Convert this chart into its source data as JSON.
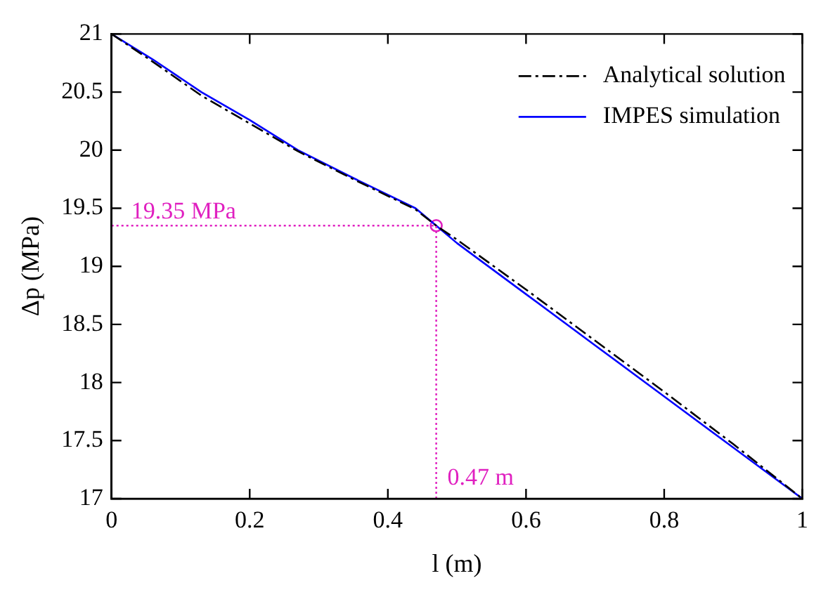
{
  "chart_data": {
    "type": "line",
    "xlabel": "l (m)",
    "ylabel": "Δp (MPa)",
    "xlim": [
      0,
      1
    ],
    "ylim": [
      17,
      21
    ],
    "xticks": [
      0,
      0.2,
      0.4,
      0.6,
      0.8,
      1
    ],
    "yticks": [
      17,
      17.5,
      18,
      18.5,
      19,
      19.5,
      20,
      20.5,
      21
    ],
    "grid": false,
    "legend": "top right",
    "series": [
      {
        "name": "Analytical solution",
        "color": "#000000",
        "line_style": "dashed",
        "marker": "none",
        "x": [
          0,
          0.06,
          0.13,
          0.2,
          0.27,
          0.35,
          0.44,
          0.47,
          0.5,
          0.6,
          0.7,
          0.8,
          0.9,
          1
        ],
        "values": [
          21,
          20.76,
          20.47,
          20.23,
          19.99,
          19.75,
          19.49,
          19.35,
          19.23,
          18.8,
          18.36,
          17.92,
          17.47,
          17
        ]
      },
      {
        "name": "IMPES simulation",
        "color": "#0000ff",
        "line_style": "solid",
        "marker": "none",
        "x": [
          0,
          0.06,
          0.13,
          0.2,
          0.27,
          0.35,
          0.44,
          0.47,
          0.5,
          0.6,
          0.7,
          0.8,
          0.9,
          1
        ],
        "values": [
          21,
          20.78,
          20.5,
          20.26,
          20,
          19.76,
          19.5,
          19.35,
          19.2,
          18.76,
          18.32,
          17.88,
          17.44,
          17
        ]
      },
      {
        "type": "scatter",
        "color": "#e020c0",
        "marker": "circle",
        "x": [
          0.47
        ],
        "values": [
          19.35
        ]
      }
    ],
    "ref_lines": [
      {
        "axis": "x",
        "value": 0.47,
        "label": "0.47 m",
        "color": "#e020c0",
        "line_style": "dotted"
      },
      {
        "axis": "y",
        "value": 19.35,
        "label": "19.35 MPa",
        "color": "#e020c0",
        "line_style": "dotted"
      }
    ]
  }
}
